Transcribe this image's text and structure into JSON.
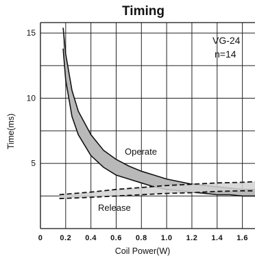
{
  "chart_data": {
    "type": "area",
    "title": "Timing",
    "xlabel": "Coil Power(W)",
    "ylabel": "Time(ms)",
    "xlim": [
      0,
      1.7
    ],
    "ylim": [
      0,
      15.8
    ],
    "x_ticks": [
      0,
      0.2,
      0.4,
      0.6,
      0.8,
      1.0,
      1.2,
      1.4,
      1.6
    ],
    "x_tick_labels": [
      "0",
      "0.2",
      "0.4",
      "0.6",
      "0.8",
      "1.0",
      "1.2",
      "1.4",
      "1.6"
    ],
    "y_ticks": [
      5,
      10,
      15
    ],
    "y_tick_labels": [
      "5",
      "10",
      "15"
    ],
    "grid": true,
    "annotations": {
      "model": "VG-24",
      "n": "n=14"
    },
    "series": [
      {
        "name": "Operate",
        "label": "Operate",
        "style": "solid-band",
        "fill": "#b9b9b9",
        "upper": {
          "x": [
            0.18,
            0.2,
            0.25,
            0.3,
            0.4,
            0.5,
            0.6,
            0.7,
            0.8,
            0.9,
            1.0,
            1.1,
            1.2,
            1.3,
            1.4,
            1.5,
            1.6,
            1.7
          ],
          "y": [
            15.4,
            13.4,
            10.6,
            9.0,
            7.2,
            6.0,
            5.3,
            4.8,
            4.4,
            4.1,
            3.8,
            3.6,
            3.4,
            3.3,
            3.2,
            3.1,
            3.0,
            3.0
          ]
        },
        "lower": {
          "x": [
            0.18,
            0.2,
            0.25,
            0.3,
            0.4,
            0.5,
            0.6,
            0.7,
            0.8,
            0.9,
            1.0,
            1.1,
            1.2,
            1.3,
            1.4,
            1.5,
            1.6,
            1.7
          ],
          "y": [
            13.8,
            11.4,
            8.6,
            7.2,
            5.6,
            4.7,
            4.1,
            3.8,
            3.5,
            3.2,
            3.0,
            2.9,
            2.8,
            2.7,
            2.6,
            2.6,
            2.5,
            2.5
          ]
        }
      },
      {
        "name": "Release",
        "label": "Release",
        "style": "dashed-band",
        "fill": "#d2d2d2",
        "upper": {
          "x": [
            0.15,
            0.4,
            0.6,
            0.8,
            1.0,
            1.2,
            1.4,
            1.6,
            1.7
          ],
          "y": [
            2.6,
            2.8,
            3.0,
            3.15,
            3.3,
            3.4,
            3.5,
            3.55,
            3.6
          ]
        },
        "lower": {
          "x": [
            0.15,
            0.4,
            0.6,
            0.8,
            1.0,
            1.2,
            1.4,
            1.6,
            1.7
          ],
          "y": [
            2.3,
            2.4,
            2.5,
            2.6,
            2.7,
            2.75,
            2.85,
            2.9,
            2.9
          ]
        }
      }
    ]
  }
}
